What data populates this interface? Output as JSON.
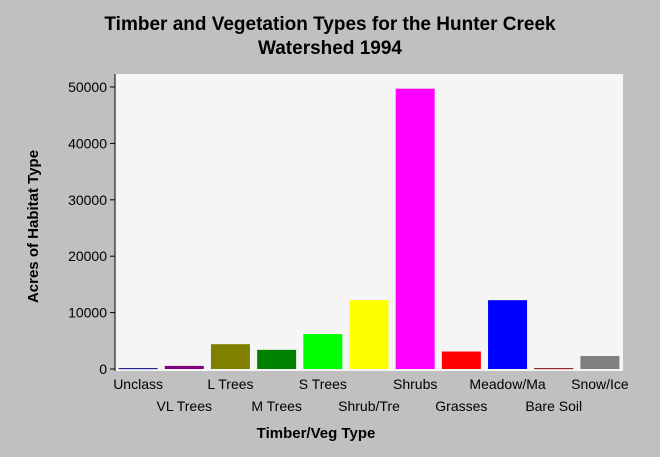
{
  "chart_data": {
    "type": "bar",
    "title": "Timber and Vegetation Types for the Hunter Creek Watershed 1994",
    "title_lines": [
      "Timber and Vegetation Types for the Hunter Creek",
      "Watershed 1994"
    ],
    "xlabel": "Timber/Veg Type",
    "ylabel": "Acres of Habitat Type",
    "categories": [
      "Unclass",
      "VL Trees",
      "L Trees",
      "M Trees",
      "S Trees",
      "Shrub/Tre",
      "Shrubs",
      "Grasses",
      "Meadow/Ma",
      "Bare Soil",
      "Snow/Ice"
    ],
    "values": [
      150,
      550,
      4400,
      3400,
      6200,
      12200,
      49700,
      3100,
      12200,
      150,
      2300
    ],
    "colors": [
      "#000080",
      "#800080",
      "#808000",
      "#008000",
      "#00ff00",
      "#ffff00",
      "#ff00ff",
      "#ff0000",
      "#0000ff",
      "#800000",
      "#808080"
    ],
    "yticks": [
      0,
      10000,
      20000,
      30000,
      40000,
      50000
    ],
    "ylim": [
      0,
      51000
    ],
    "grid": false,
    "plot_background": "#f5f5f5",
    "page_background": "#c0c0c0"
  }
}
